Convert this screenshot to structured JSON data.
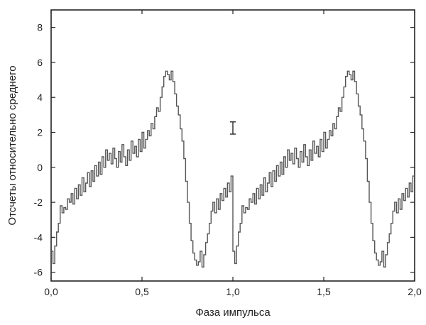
{
  "chart_data": {
    "type": "line",
    "style": "step",
    "xlabel": "Фаза импульса",
    "ylabel": "Отсчеты относительно среднего",
    "xlim": [
      0.0,
      2.0
    ],
    "ylim": [
      -6.5,
      9.0
    ],
    "x_ticks": [
      0.0,
      0.5,
      1.0,
      1.5,
      2.0
    ],
    "x_tick_labels": [
      "0,0",
      "0,5",
      "1,0",
      "1,5",
      "2,0"
    ],
    "y_ticks": [
      -6,
      -4,
      -2,
      0,
      2,
      4,
      6,
      8
    ],
    "y_tick_labels": [
      "-6",
      "-4",
      "-2",
      "0",
      "2",
      "4",
      "6",
      "8"
    ],
    "grid": false,
    "colors": {
      "line": "#555555",
      "frame": "#222222"
    },
    "error_bar": {
      "x": 1.0,
      "y_low": 1.9,
      "y_high": 2.6
    },
    "series": [
      {
        "bin_width": 0.01,
        "x_start": 0.0,
        "values": [
          -4.8,
          -5.5,
          -4.5,
          -3.7,
          -3.2,
          -2.2,
          -2.6,
          -2.3,
          -2.4,
          -1.8,
          -2.0,
          -1.5,
          -2.1,
          -1.2,
          -1.8,
          -1.0,
          -1.6,
          -0.6,
          -1.4,
          -0.9,
          -0.3,
          -1.1,
          -0.2,
          -0.8,
          0.1,
          -0.5,
          0.3,
          -0.4,
          0.6,
          0.0,
          1.0,
          0.4,
          0.8,
          0.2,
          1.1,
          0.5,
          0.0,
          0.9,
          0.3,
          1.3,
          0.6,
          0.1,
          1.0,
          0.4,
          1.5,
          0.8,
          1.2,
          0.6,
          1.6,
          0.9,
          2.0,
          1.1,
          1.6,
          2.1,
          1.8,
          2.5,
          2.2,
          2.9,
          3.4,
          3.2,
          4.0,
          4.6,
          5.2,
          5.5,
          5.3,
          5.0,
          5.5,
          4.9,
          4.2,
          3.5,
          3.0,
          2.2,
          1.5,
          0.5,
          -0.8,
          -2.0,
          -3.2,
          -4.2,
          -4.9,
          -5.3,
          -5.6,
          -5.4,
          -4.8,
          -5.7,
          -5.0,
          -4.3,
          -3.8,
          -3.2,
          -2.5,
          -2.0,
          -2.6,
          -1.8,
          -2.4,
          -1.5,
          -1.9,
          -1.2,
          -1.7,
          -0.9,
          -1.4,
          -0.5
        ],
        "repeat_phase_offset": 1.0
      }
    ]
  }
}
